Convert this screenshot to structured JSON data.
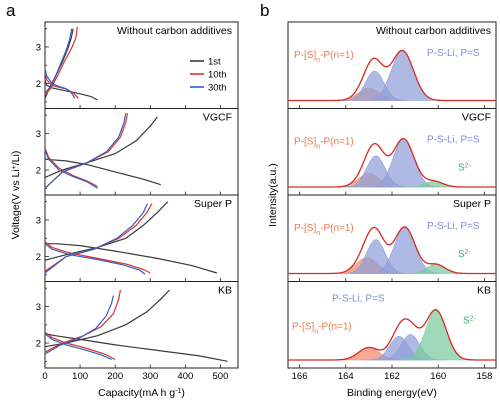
{
  "colors": {
    "c1": "#3a3a3a",
    "c10": "#e0302a",
    "c30": "#2f5fc8",
    "envelope": "#d42a22",
    "peak_orange": "#ee8c6a",
    "peak_blue": "#8f9fd8",
    "peak_green": "#7ccaa0",
    "label_orange": "#ec7a52",
    "label_blue": "#7a90d0",
    "label_green": "#3fae6e",
    "axis": "#222222"
  },
  "panel_a": {
    "letter": "a",
    "ylabel_main": "Voltage(V vs Li",
    "ylabel_sup": "+",
    "ylabel_tail": "/Li)",
    "xlabel": "Capacity(mA h g",
    "xlabel_sup": "-1",
    "xlabel_tail": ")",
    "legend": [
      "1st",
      "10th",
      "30th"
    ]
  },
  "panel_b": {
    "letter": "b",
    "ylabel": "Intensity(a.u.)",
    "xlabel": "Binding energy(eV)",
    "label_polysulfide_head": "P-[S]",
    "label_polysulfide_sub": "n",
    "label_polysulfide_tail": "-P(n=1)",
    "label_pscap": "P-S-Li, P=S",
    "label_sulfide": "S",
    "label_sulfide_sup": "2-"
  },
  "chart_data": [
    {
      "type": "line",
      "panel": "a",
      "xlabel": "Capacity(mA h g-1)",
      "ylabel": "Voltage(V vs Li+/Li)",
      "xlim": [
        0,
        550
      ],
      "ylim": [
        1.4,
        3.6
      ],
      "xticks": [
        0,
        100,
        200,
        300,
        400,
        500
      ],
      "yticks": [
        1,
        2,
        3
      ],
      "subplots": [
        {
          "title": "Without carbon additives",
          "series": [
            {
              "name": "1st",
              "discharge": {
                "x": [
                  0,
                  5,
                  20,
                  60,
                  100,
                  130,
                  150
                ],
                "y": [
                  2.1,
                  1.95,
                  1.88,
                  1.8,
                  1.72,
                  1.65,
                  1.55
                ]
              },
              "charge": {
                "x": [
                  0,
                  10,
                  30,
                  50,
                  65,
                  75,
                  80
                ],
                "y": [
                  1.6,
                  1.82,
                  2.2,
                  2.6,
                  2.95,
                  3.25,
                  3.5
                ]
              }
            },
            {
              "name": "10th",
              "discharge": {
                "x": [
                  0,
                  5,
                  20,
                  40,
                  60,
                  80,
                  95
                ],
                "y": [
                  2.3,
                  2.1,
                  1.95,
                  1.9,
                  1.85,
                  1.75,
                  1.6
                ]
              },
              "charge": {
                "x": [
                  0,
                  15,
                  35,
                  55,
                  75,
                  88,
                  92
                ],
                "y": [
                  1.7,
                  1.85,
                  2.2,
                  2.6,
                  2.95,
                  3.25,
                  3.55
                ]
              }
            },
            {
              "name": "30th",
              "discharge": {
                "x": [
                  0,
                  5,
                  20,
                  40,
                  60,
                  75,
                  85
                ],
                "y": [
                  2.4,
                  2.2,
                  2.0,
                  1.92,
                  1.86,
                  1.75,
                  1.6
                ]
              },
              "charge": {
                "x": [
                  0,
                  15,
                  30,
                  45,
                  60,
                  70,
                  76
                ],
                "y": [
                  1.75,
                  1.9,
                  2.2,
                  2.55,
                  2.9,
                  3.2,
                  3.5
                ]
              }
            }
          ]
        },
        {
          "title": "VGCF",
          "series": [
            {
              "name": "1st",
              "discharge": {
                "x": [
                  0,
                  20,
                  60,
                  120,
                  200,
                  280,
                  330
                ],
                "y": [
                  2.3,
                  2.28,
                  2.25,
                  2.15,
                  1.95,
                  1.75,
                  1.6
                ]
              },
              "charge": {
                "x": [
                  0,
                  50,
                  120,
                  200,
                  260,
                  300,
                  320
                ],
                "y": [
                  1.8,
                  2.0,
                  2.2,
                  2.45,
                  2.8,
                  3.2,
                  3.45
                ]
              }
            },
            {
              "name": "10th",
              "discharge": {
                "x": [
                  0,
                  10,
                  40,
                  80,
                  120,
                  150
                ],
                "y": [
                  2.6,
                  2.35,
                  2.05,
                  1.85,
                  1.7,
                  1.55
                ]
              },
              "charge": {
                "x": [
                  0,
                  50,
                  120,
                  180,
                  215,
                  230,
                  235
                ],
                "y": [
                  1.5,
                  1.95,
                  2.2,
                  2.5,
                  2.9,
                  3.3,
                  3.55
                ]
              }
            },
            {
              "name": "30th",
              "discharge": {
                "x": [
                  0,
                  10,
                  40,
                  80,
                  120,
                  150
                ],
                "y": [
                  2.55,
                  2.3,
                  2.0,
                  1.82,
                  1.68,
                  1.5
                ]
              },
              "charge": {
                "x": [
                  0,
                  50,
                  120,
                  175,
                  210,
                  225,
                  230
                ],
                "y": [
                  1.5,
                  1.95,
                  2.2,
                  2.5,
                  2.9,
                  3.3,
                  3.55
                ]
              }
            }
          ]
        },
        {
          "title": "Super P",
          "series": [
            {
              "name": "1st",
              "discharge": {
                "x": [
                  0,
                  30,
                  100,
                  200,
                  320,
                  420,
                  490
                ],
                "y": [
                  2.35,
                  2.35,
                  2.3,
                  2.15,
                  1.95,
                  1.75,
                  1.55
                ]
              },
              "charge": {
                "x": [
                  0,
                  60,
                  150,
                  230,
                  280,
                  320,
                  350
                ],
                "y": [
                  1.9,
                  2.05,
                  2.25,
                  2.5,
                  2.85,
                  3.2,
                  3.5
                ]
              }
            },
            {
              "name": "10th",
              "discharge": {
                "x": [
                  0,
                  20,
                  70,
                  150,
                  230,
                  280,
                  300
                ],
                "y": [
                  2.4,
                  2.25,
                  2.1,
                  1.95,
                  1.8,
                  1.65,
                  1.55
                ]
              },
              "charge": {
                "x": [
                  0,
                  60,
                  140,
                  210,
                  260,
                  290,
                  305
                ],
                "y": [
                  1.6,
                  2.0,
                  2.2,
                  2.5,
                  2.85,
                  3.2,
                  3.45
                ]
              }
            },
            {
              "name": "30th",
              "discharge": {
                "x": [
                  0,
                  20,
                  70,
                  150,
                  220,
                  270,
                  285
                ],
                "y": [
                  2.35,
                  2.2,
                  2.05,
                  1.92,
                  1.78,
                  1.63,
                  1.52
                ]
              },
              "charge": {
                "x": [
                  0,
                  60,
                  140,
                  205,
                  250,
                  280,
                  292
                ],
                "y": [
                  1.55,
                  2.0,
                  2.2,
                  2.5,
                  2.85,
                  3.2,
                  3.45
                ]
              }
            }
          ]
        },
        {
          "title": "KB",
          "series": [
            {
              "name": "1st",
              "discharge": {
                "x": [
                  0,
                  30,
                  100,
                  200,
                  320,
                  440,
                  520
                ],
                "y": [
                  2.25,
                  2.2,
                  2.1,
                  1.95,
                  1.8,
                  1.65,
                  1.5
                ]
              },
              "charge": {
                "x": [
                  0,
                  60,
                  150,
                  230,
                  290,
                  330,
                  355
                ],
                "y": [
                  1.9,
                  2.0,
                  2.2,
                  2.5,
                  2.85,
                  3.2,
                  3.45
                ]
              }
            },
            {
              "name": "10th",
              "discharge": {
                "x": [
                  0,
                  20,
                  60,
                  120,
                  170,
                  200
                ],
                "y": [
                  2.3,
                  2.15,
                  2.0,
                  1.85,
                  1.7,
                  1.55
                ]
              },
              "charge": {
                "x": [
                  0,
                  50,
                  110,
                  160,
                  195,
                  210,
                  215
                ],
                "y": [
                  1.75,
                  2.0,
                  2.2,
                  2.45,
                  2.8,
                  3.2,
                  3.45
                ]
              }
            },
            {
              "name": "30th",
              "discharge": {
                "x": [
                  0,
                  20,
                  60,
                  110,
                  160,
                  190
                ],
                "y": [
                  2.25,
                  2.1,
                  1.95,
                  1.82,
                  1.68,
                  1.55
                ]
              },
              "charge": {
                "x": [
                  0,
                  45,
                  100,
                  145,
                  175,
                  190,
                  195
                ],
                "y": [
                  1.7,
                  1.95,
                  2.15,
                  2.4,
                  2.75,
                  3.1,
                  3.3
                ]
              }
            }
          ]
        }
      ]
    },
    {
      "type": "area",
      "panel": "b",
      "xlabel": "Binding energy(eV)",
      "ylabel": "Intensity(a.u.)",
      "xlim": [
        166.5,
        157.5
      ],
      "x_reversed": true,
      "xticks": [
        166,
        164,
        162,
        160,
        158
      ],
      "subplots": [
        {
          "title": "Without carbon additives",
          "peaks": [
            {
              "label": "P-[S]n-P(n=1)",
              "center": 163.0,
              "height": 0.22,
              "sigma": 0.45,
              "color": "orange"
            },
            {
              "label": "P-S-Li, P=S",
              "center": 162.75,
              "height": 0.52,
              "sigma": 0.4,
              "color": "blue"
            },
            {
              "label": "P-S-Li, P=S",
              "center": 161.55,
              "height": 0.88,
              "sigma": 0.48,
              "color": "blue"
            }
          ]
        },
        {
          "title": "VGCF",
          "peaks": [
            {
              "label": "P-[S]n-P(n=1)",
              "center": 163.0,
              "height": 0.24,
              "sigma": 0.45,
              "color": "orange"
            },
            {
              "label": "P-S-Li, P=S",
              "center": 162.7,
              "height": 0.55,
              "sigma": 0.4,
              "color": "blue"
            },
            {
              "label": "P-S-Li, P=S",
              "center": 161.5,
              "height": 0.85,
              "sigma": 0.45,
              "color": "blue"
            },
            {
              "label": "S2-",
              "center": 160.2,
              "height": 0.1,
              "sigma": 0.4,
              "color": "green"
            }
          ]
        },
        {
          "title": "Super P",
          "peaks": [
            {
              "label": "P-[S]n-P(n=1)",
              "center": 163.1,
              "height": 0.28,
              "sigma": 0.45,
              "color": "orange"
            },
            {
              "label": "P-S-Li, P=S",
              "center": 162.7,
              "height": 0.6,
              "sigma": 0.4,
              "color": "blue"
            },
            {
              "label": "P-S-Li, P=S",
              "center": 161.45,
              "height": 0.82,
              "sigma": 0.45,
              "color": "blue"
            },
            {
              "label": "S2-",
              "center": 160.1,
              "height": 0.16,
              "sigma": 0.4,
              "color": "green"
            }
          ]
        },
        {
          "title": "KB",
          "peaks": [
            {
              "label": "P-[S]n-P(n=1)",
              "center": 163.0,
              "height": 0.22,
              "sigma": 0.45,
              "color": "orange"
            },
            {
              "label": "P-S-Li, P=S",
              "center": 161.7,
              "height": 0.42,
              "sigma": 0.4,
              "color": "blue"
            },
            {
              "label": "P-S-Li, P=S",
              "center": 161.2,
              "height": 0.45,
              "sigma": 0.4,
              "color": "blue"
            },
            {
              "label": "S2-",
              "center": 160.1,
              "height": 0.88,
              "sigma": 0.45,
              "color": "green"
            }
          ]
        }
      ]
    }
  ]
}
